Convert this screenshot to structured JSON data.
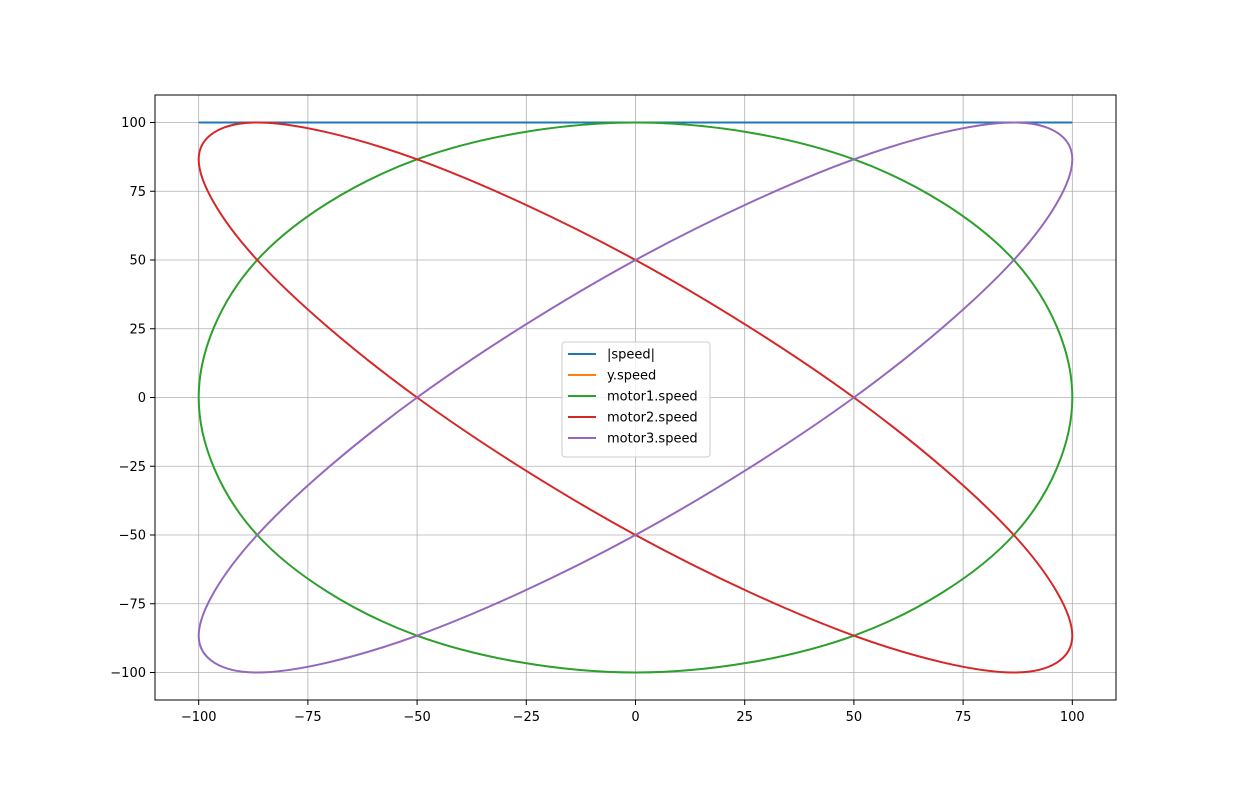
{
  "chart_data": {
    "type": "line",
    "title": "",
    "xlabel": "",
    "ylabel": "",
    "xlim": [
      -110,
      110
    ],
    "ylim": [
      -110,
      110
    ],
    "xticks": [
      -100,
      -75,
      -50,
      -25,
      0,
      25,
      50,
      75,
      100
    ],
    "yticks": [
      -100,
      -75,
      -50,
      -25,
      0,
      25,
      50,
      75,
      100
    ],
    "xtick_labels": [
      "−100",
      "−75",
      "−50",
      "−25",
      "0",
      "25",
      "50",
      "75",
      "100"
    ],
    "ytick_labels": [
      "−100",
      "−75",
      "−50",
      "−25",
      "0",
      "25",
      "50",
      "75",
      "100"
    ],
    "grid": true,
    "legend_position": "center",
    "series": [
      {
        "name": "|speed|",
        "color": "#1f77b4",
        "x": [
          -100,
          -75,
          -50,
          -25,
          0,
          25,
          50,
          75,
          100
        ],
        "y": [
          100,
          100,
          100,
          100,
          100,
          100,
          100,
          100,
          100
        ]
      },
      {
        "name": "y.speed",
        "color": "#ff7f0e",
        "x": [],
        "y": []
      },
      {
        "name": "motor1.speed",
        "color": "#2ca02c",
        "x": [
          0,
          50,
          86.6,
          100,
          86.6,
          50,
          0,
          -50,
          -86.6,
          -100,
          -86.6,
          -50,
          0
        ],
        "y": [
          100,
          86.6,
          50,
          0,
          -50,
          -86.6,
          -100,
          -86.6,
          -50,
          0,
          50,
          86.6,
          100
        ]
      },
      {
        "name": "motor2.speed",
        "color": "#d62728",
        "x": [
          -86.6,
          -100,
          -86.6,
          -50,
          0,
          50,
          86.6,
          100,
          86.6,
          50,
          0,
          -50,
          -86.6
        ],
        "y": [
          100,
          86.6,
          50,
          0,
          -50,
          -86.6,
          -100,
          -86.6,
          -50,
          0,
          50,
          86.6,
          100
        ]
      },
      {
        "name": "motor3.speed",
        "color": "#9467bd",
        "x": [
          86.6,
          100,
          86.6,
          50,
          0,
          -50,
          -86.6,
          -100,
          -86.6,
          -50,
          0,
          50,
          86.6
        ],
        "y": [
          100,
          86.6,
          50,
          0,
          -50,
          -86.6,
          -100,
          -86.6,
          -50,
          0,
          50,
          86.6,
          100
        ]
      }
    ]
  }
}
